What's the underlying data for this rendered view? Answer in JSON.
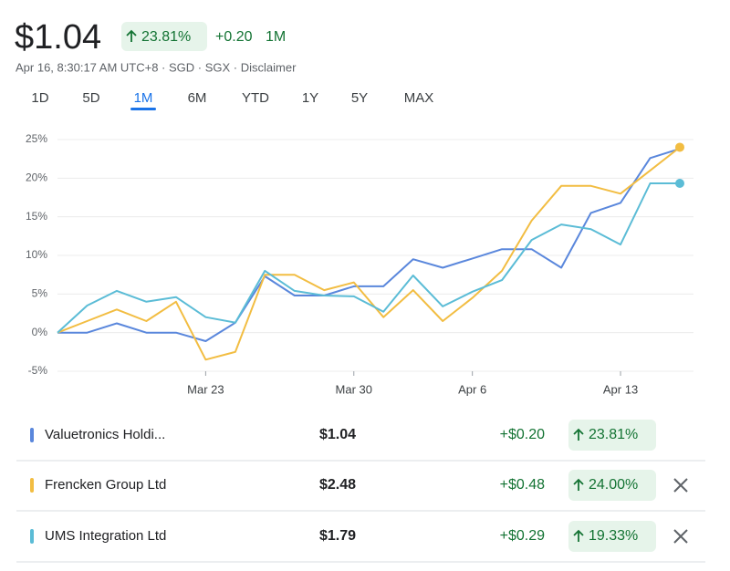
{
  "header": {
    "price": "$1.04",
    "change_pct": "23.81%",
    "change": "+0.20",
    "change_period": "1M",
    "meta": "Apr 16, 8:30:17 AM UTC+8 · SGD · SGX · Disclaimer"
  },
  "tabs": {
    "items": [
      "1D",
      "5D",
      "1M",
      "6M",
      "YTD",
      "1Y",
      "5Y",
      "MAX"
    ],
    "active": 2
  },
  "chart_data": {
    "type": "line",
    "categories": [
      null,
      null,
      null,
      null,
      null,
      "Mar 23",
      null,
      null,
      null,
      null,
      "Mar 30",
      null,
      null,
      null,
      "Apr 6",
      null,
      null,
      null,
      null,
      "Apr 13",
      null,
      null
    ],
    "series": [
      {
        "name": "Valuetronics Holdi...",
        "color": "#5a87dc",
        "marker_end": false,
        "values": [
          0,
          0,
          1.2,
          0,
          0,
          -1.1,
          1.3,
          7.3,
          4.8,
          4.8,
          6.0,
          6.0,
          9.5,
          8.4,
          9.6,
          10.8,
          10.8,
          8.4,
          15.5,
          16.8,
          22.6,
          23.81
        ]
      },
      {
        "name": "Frencken Group Ltd",
        "color": "#f2bd42",
        "marker_end": true,
        "values": [
          0,
          1.5,
          3.0,
          1.5,
          4.0,
          -3.5,
          -2.5,
          7.5,
          7.5,
          5.5,
          6.5,
          2.0,
          5.5,
          1.5,
          4.5,
          8.0,
          14.5,
          19.0,
          19.0,
          18.0,
          21.0,
          24.0
        ]
      },
      {
        "name": "UMS Integration Ltd",
        "color": "#5bbcd6",
        "marker_end": true,
        "values": [
          0,
          3.5,
          5.4,
          4.0,
          4.6,
          2.0,
          1.3,
          8.0,
          5.4,
          4.8,
          4.7,
          2.7,
          7.4,
          3.4,
          5.3,
          6.8,
          12.0,
          14.0,
          13.4,
          11.4,
          19.33,
          19.33
        ]
      }
    ],
    "ylim": [
      -5,
      25
    ],
    "yticks": [
      {
        "value": -5,
        "label": "-5%"
      },
      {
        "value": 0,
        "label": "0%"
      },
      {
        "value": 5,
        "label": "5%"
      },
      {
        "value": 10,
        "label": "10%"
      },
      {
        "value": 15,
        "label": "15%"
      },
      {
        "value": 20,
        "label": "20%"
      },
      {
        "value": 25,
        "label": "25%"
      }
    ],
    "grid": true
  },
  "table": {
    "rows": [
      {
        "price": "$1.04",
        "change": "+$0.20",
        "change_pct": "23.81%",
        "removable": false
      },
      {
        "price": "$2.48",
        "change": "+$0.48",
        "change_pct": "24.00%",
        "removable": true
      },
      {
        "price": "$1.79",
        "change": "+$0.29",
        "change_pct": "19.33%",
        "removable": true
      }
    ]
  }
}
